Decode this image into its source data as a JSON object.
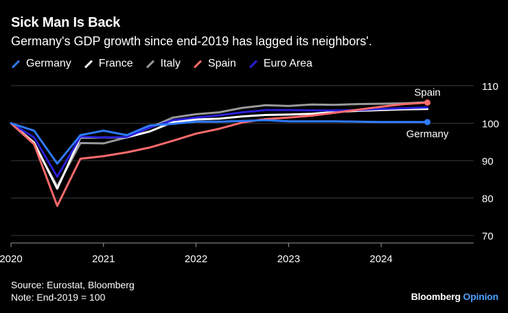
{
  "header": {
    "title": "Sick Man Is Back",
    "subtitle": "Germany's GDP growth since end-2019 has lagged its neighbors'."
  },
  "footer": {
    "source": "Source: Eurostat, Bloomberg",
    "note": "Note: End-2019 = 100"
  },
  "brand": {
    "name": "Bloomberg",
    "section": "Opinion"
  },
  "chart_data": {
    "type": "line",
    "title": "Sick Man Is Back",
    "xlabel": "",
    "ylabel": "",
    "xlim": [
      2020.0,
      2025.0
    ],
    "ylim": [
      68,
      112
    ],
    "yticks": [
      70,
      80,
      90,
      100,
      110
    ],
    "xticks": [
      2020,
      2021,
      2022,
      2023,
      2024
    ],
    "grid": true,
    "legend_position": "top-left",
    "x": [
      2020.0,
      2020.25,
      2020.5,
      2020.75,
      2021.0,
      2021.25,
      2021.5,
      2021.75,
      2022.0,
      2022.25,
      2022.5,
      2022.75,
      2023.0,
      2023.25,
      2023.5,
      2023.75,
      2024.0,
      2024.25,
      2024.5
    ],
    "series": [
      {
        "name": "Germany",
        "color": "#2f7bff",
        "values": [
          100.0,
          98.0,
          89.2,
          96.8,
          98.0,
          96.8,
          99.4,
          99.8,
          100.4,
          100.4,
          100.6,
          100.8,
          100.5,
          100.5,
          100.5,
          100.4,
          100.3,
          100.3,
          100.3
        ]
      },
      {
        "name": "France",
        "color": "#ffffff",
        "values": [
          100.0,
          94.8,
          82.5,
          96.2,
          96.2,
          96.2,
          97.8,
          100.3,
          101.0,
          101.2,
          101.8,
          102.2,
          102.3,
          102.5,
          103.0,
          103.3,
          103.5,
          103.7,
          103.8
        ]
      },
      {
        "name": "Italy",
        "color": "#9a9a9a",
        "values": [
          100.0,
          94.4,
          83.1,
          94.7,
          94.6,
          96.2,
          98.8,
          101.5,
          102.4,
          102.9,
          104.1,
          104.8,
          104.6,
          105.0,
          104.9,
          105.1,
          105.2,
          105.3,
          105.6
        ]
      },
      {
        "name": "Spain",
        "color": "#ff6b6b",
        "values": [
          100.0,
          94.4,
          77.9,
          90.5,
          91.2,
          92.2,
          93.5,
          95.3,
          97.2,
          98.5,
          100.2,
          101.1,
          101.5,
          102.0,
          102.8,
          103.6,
          104.4,
          105.1,
          105.5
        ]
      },
      {
        "name": "Euro Area",
        "color": "#2a1fd8",
        "values": [
          100.0,
          96.2,
          85.7,
          96.4,
          96.2,
          96.3,
          98.8,
          100.8,
          101.5,
          102.1,
          102.9,
          103.5,
          103.5,
          103.4,
          103.4,
          103.5,
          103.8,
          104.0,
          104.2
        ]
      }
    ],
    "annotations": [
      {
        "text": "Spain",
        "series": "Spain"
      },
      {
        "text": "Germany",
        "series": "Germany"
      }
    ]
  }
}
